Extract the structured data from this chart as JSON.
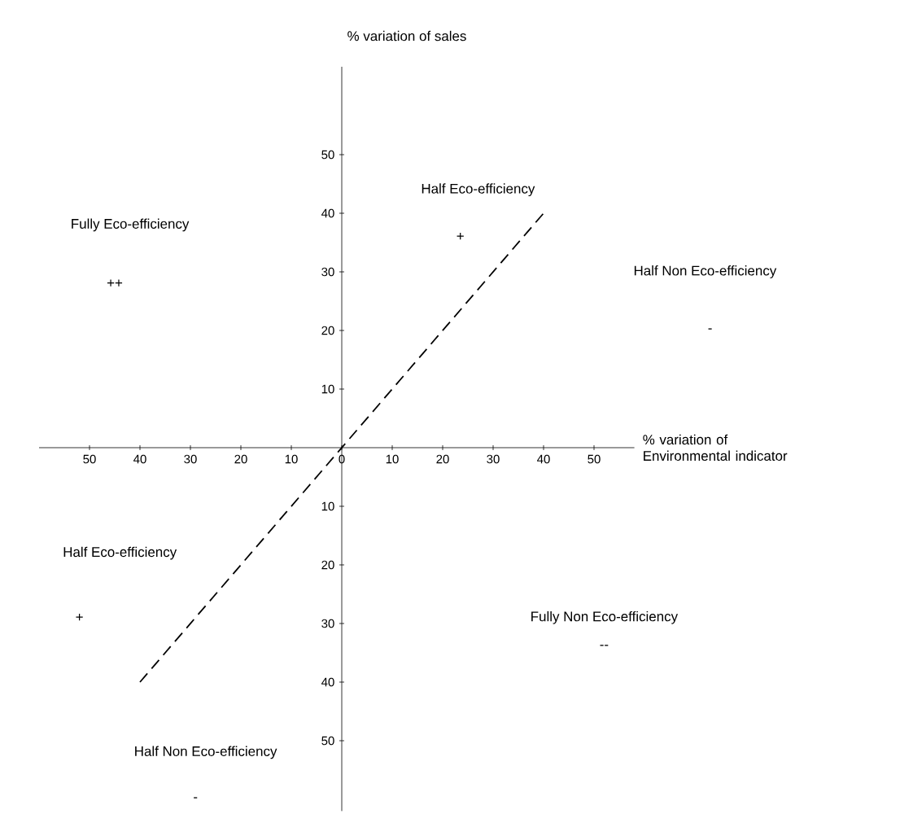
{
  "chart_data": {
    "type": "line",
    "xlabel": "% variation of Environmental indicator",
    "ylabel": "% variation of sales",
    "series": [
      {
        "x": [
          -40,
          40
        ],
        "values": [
          -40,
          40
        ],
        "color": "#000000"
      }
    ],
    "line_style": "dashed",
    "marker": "none",
    "xlim": [
      -60,
      58
    ],
    "ylim": [
      -62,
      65
    ],
    "xticks": [
      {
        "value": -50,
        "label": "50"
      },
      {
        "value": -40,
        "label": "40"
      },
      {
        "value": -30,
        "label": "30"
      },
      {
        "value": -20,
        "label": "20"
      },
      {
        "value": -10,
        "label": "10"
      },
      0,
      10,
      20,
      30,
      40,
      50
    ],
    "yticks": [
      {
        "value": -50,
        "label": "50"
      },
      {
        "value": -40,
        "label": "40"
      },
      {
        "value": -30,
        "label": "30"
      },
      {
        "value": -20,
        "label": "20"
      },
      {
        "value": -10,
        "label": "10"
      },
      10,
      20,
      30,
      40,
      50
    ],
    "annotations": [
      "Fully Eco-efficiency",
      "++",
      "Half Eco-efficiency",
      "+",
      "Half Non Eco-efficiency",
      "-",
      "Half Eco-efficiency",
      "+",
      "Fully Non Eco-efficiency",
      "--",
      "Half Non Eco-efficiency",
      "-"
    ]
  }
}
